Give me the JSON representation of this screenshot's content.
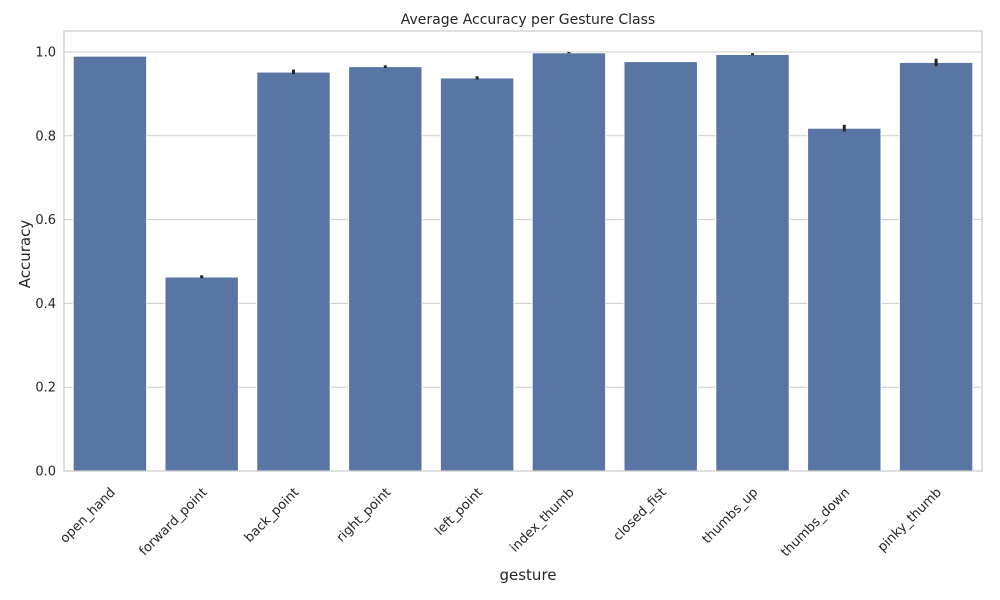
{
  "chart_data": {
    "type": "bar",
    "title": "Average Accuracy per Gesture Class",
    "xlabel": "gesture",
    "ylabel": "Accuracy",
    "categories": [
      "open_hand",
      "forward_point",
      "back_point",
      "right_point",
      "left_point",
      "index_thumb",
      "closed_fist",
      "thumbs_up",
      "thumbs_down",
      "pinky_thumb"
    ],
    "values": [
      0.99,
      0.463,
      0.952,
      0.965,
      0.938,
      0.998,
      0.977,
      0.994,
      0.818,
      0.975
    ],
    "error_low": [
      0.99,
      0.46,
      0.947,
      0.962,
      0.934,
      0.997,
      0.977,
      0.992,
      0.81,
      0.966
    ],
    "error_high": [
      0.99,
      0.467,
      0.958,
      0.968,
      0.942,
      1.0,
      0.977,
      0.997,
      0.826,
      0.984
    ],
    "ylim": [
      0,
      1.05
    ],
    "yticks": [
      0.0,
      0.2,
      0.4,
      0.6,
      0.8,
      1.0
    ],
    "ytick_labels": [
      "0.0",
      "0.2",
      "0.4",
      "0.6",
      "0.8",
      "1.0"
    ],
    "grid": "horizontal",
    "colors": {
      "bar": "#5975a4",
      "error_bar": "#262626",
      "grid": "#cccccc",
      "text": "#262626"
    }
  }
}
